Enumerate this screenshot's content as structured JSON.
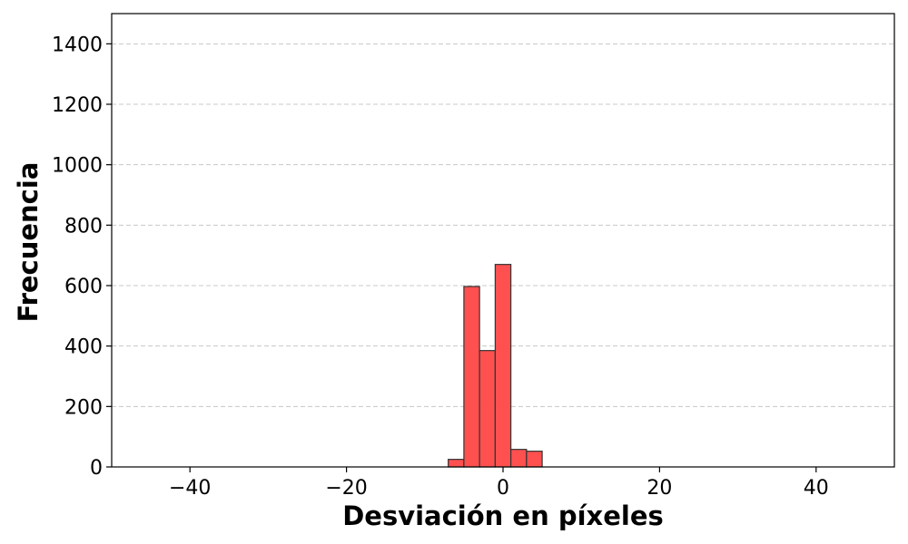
{
  "chart_data": {
    "type": "bar",
    "title": "",
    "xlabel": "Desviación en píxeles",
    "ylabel": "Frecuencia",
    "xlim": [
      -50,
      50
    ],
    "ylim": [
      0,
      1500
    ],
    "x_ticks": [
      -40,
      -20,
      0,
      20,
      40
    ],
    "x_tick_labels": [
      "−40",
      "−20",
      "0",
      "20",
      "40"
    ],
    "y_ticks": [
      0,
      200,
      400,
      600,
      800,
      1000,
      1200,
      1400
    ],
    "y_tick_labels": [
      "0",
      "200",
      "400",
      "600",
      "800",
      "1000",
      "1200",
      "1400"
    ],
    "grid": "horizontal dashed",
    "bar_color": "#ff4d4d",
    "edge_color": "#333333",
    "bins": [
      {
        "start": -7,
        "end": -5,
        "value": 25
      },
      {
        "start": -5,
        "end": -3,
        "value": 597
      },
      {
        "start": -3,
        "end": -1,
        "value": 385
      },
      {
        "start": -1,
        "end": 1,
        "value": 670
      },
      {
        "start": 1,
        "end": 3,
        "value": 58
      },
      {
        "start": 3,
        "end": 5,
        "value": 52
      }
    ]
  }
}
